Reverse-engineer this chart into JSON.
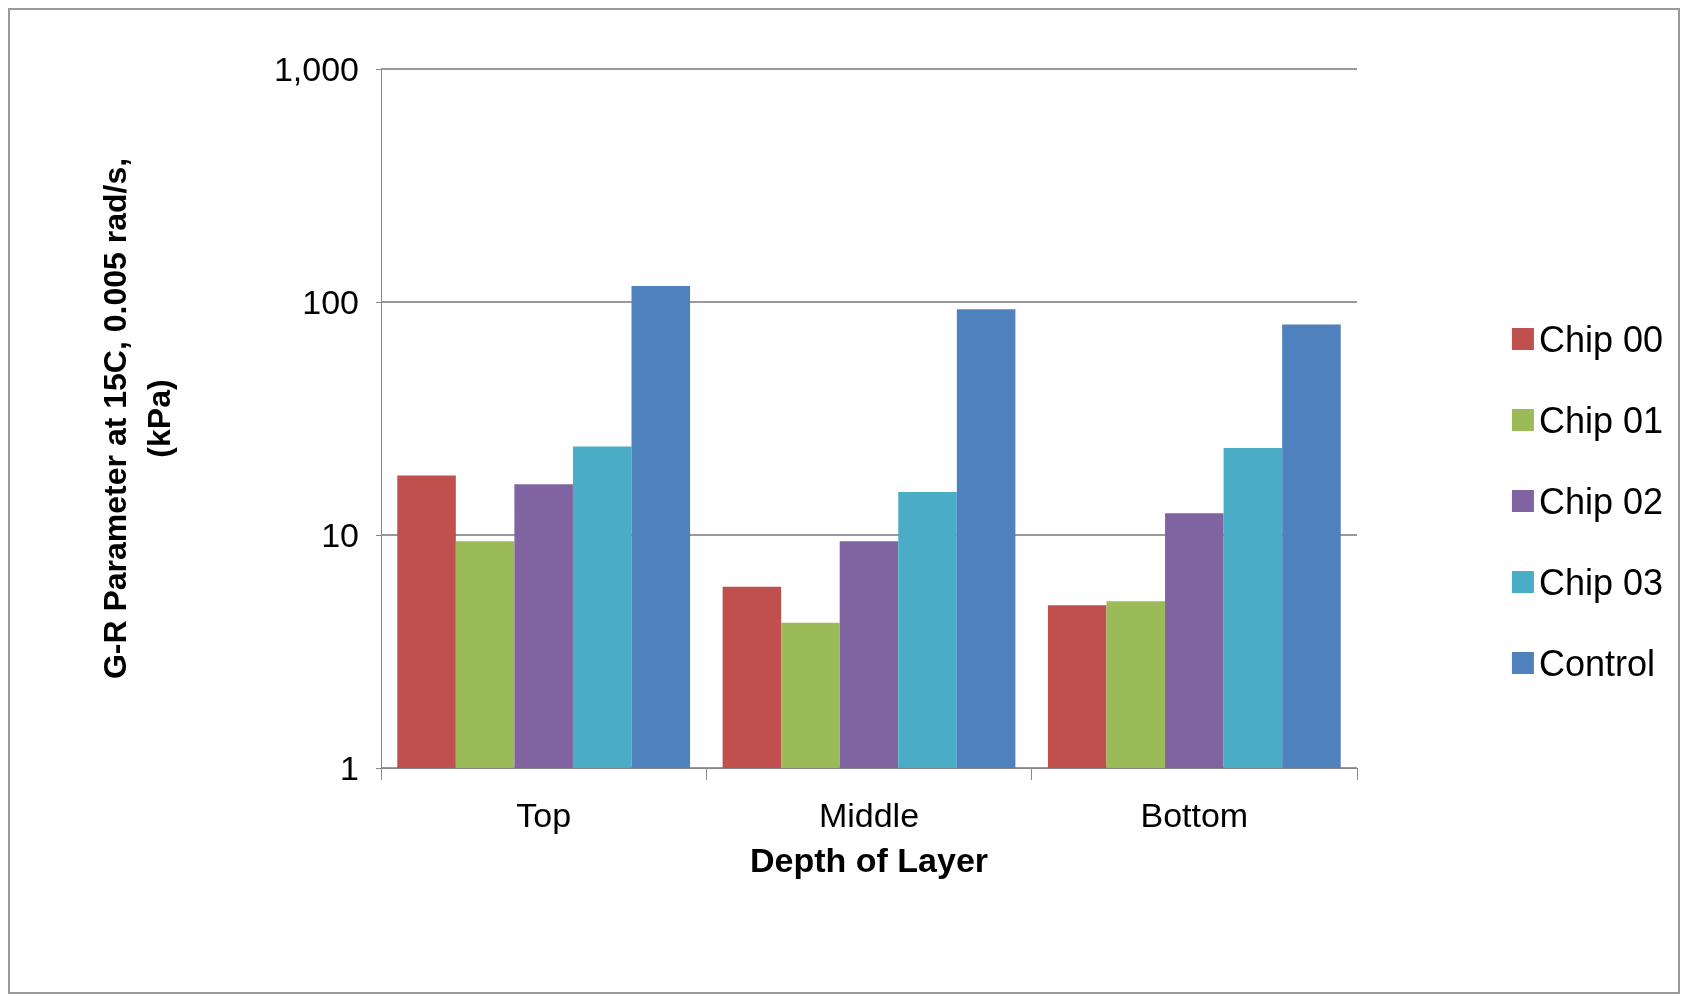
{
  "chart_data": {
    "type": "bar",
    "xlabel": "Depth of Layer",
    "ylabel": "G-R Parameter at 15C, 0.005 rad/s,\n(kPa)",
    "categories": [
      "Top",
      "Middle",
      "Bottom"
    ],
    "series": [
      {
        "name": "Chip 00",
        "color": "#c0504d",
        "values": [
          18,
          6.0,
          5.0
        ]
      },
      {
        "name": "Chip 01",
        "color": "#9bbb59",
        "values": [
          9.4,
          4.2,
          5.2
        ]
      },
      {
        "name": "Chip 02",
        "color": "#8064a2",
        "values": [
          16.5,
          9.4,
          12.4
        ]
      },
      {
        "name": "Chip 03",
        "color": "#4bacc6",
        "values": [
          24,
          15.3,
          23.6
        ]
      },
      {
        "name": "Control",
        "color": "#4f81bd",
        "values": [
          117,
          93,
          80
        ]
      }
    ],
    "log": "y",
    "ylim": [
      1,
      1000
    ],
    "yticks": [
      1,
      10,
      100,
      {
        "value": 1000,
        "label": "1,000"
      }
    ],
    "grid": "y",
    "legend": "right"
  }
}
